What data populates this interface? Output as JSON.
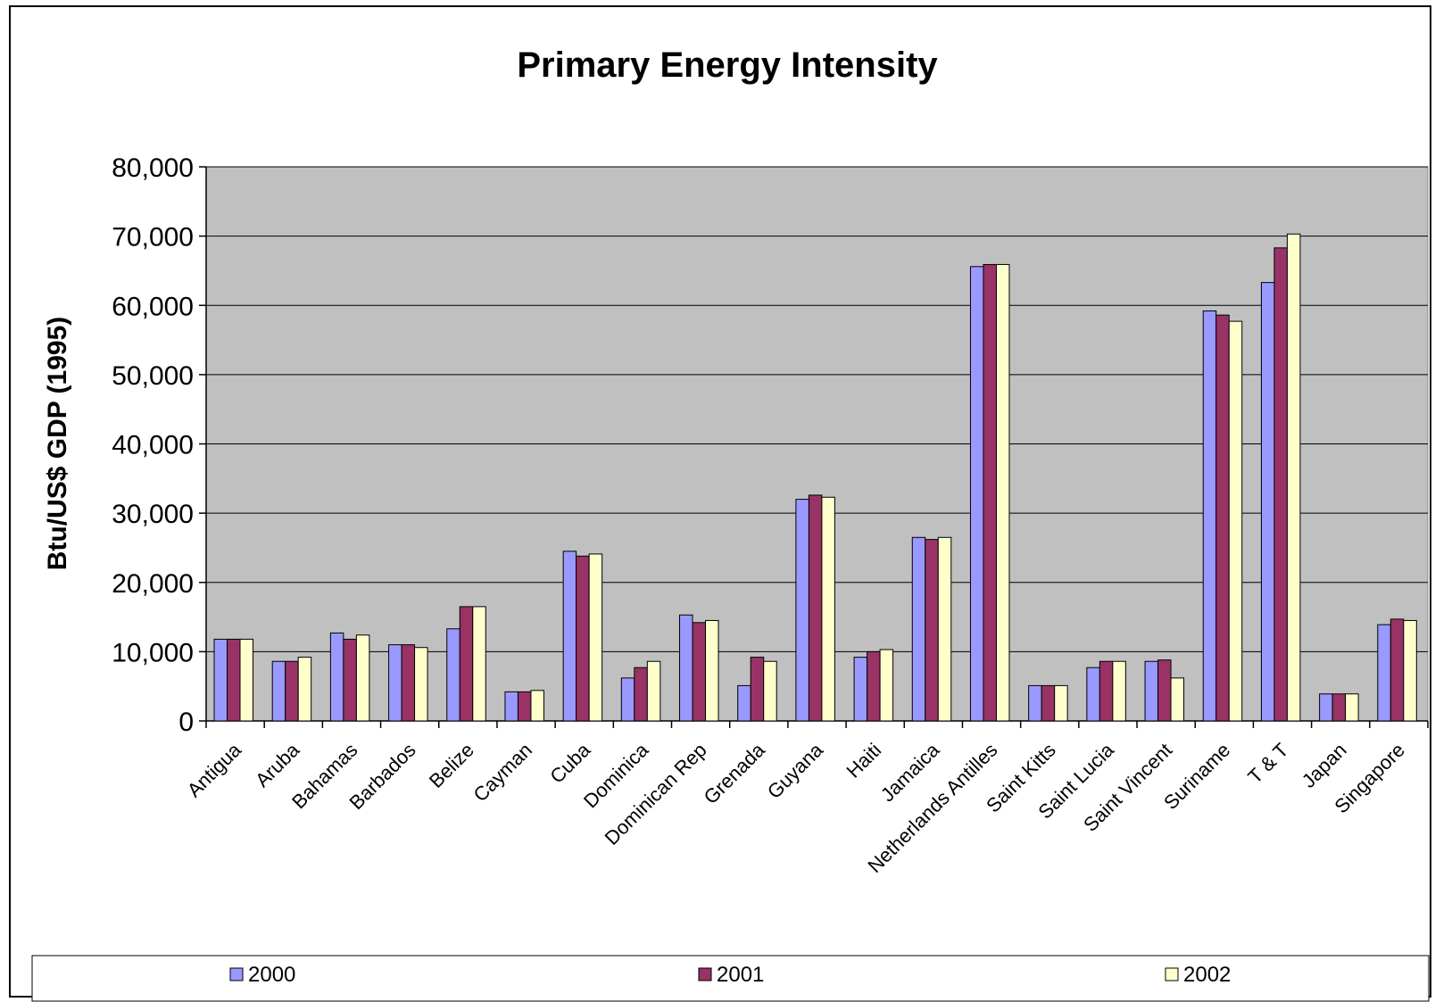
{
  "chart_data": {
    "type": "bar",
    "title": "Primary Energy Intensity",
    "ylabel": "Btu/US$ GDP (1995)",
    "xlabel": "",
    "ylim": [
      0,
      80000
    ],
    "yticks": [
      "0",
      "10,000",
      "20,000",
      "30,000",
      "40,000",
      "50,000",
      "60,000",
      "70,000",
      "80,000"
    ],
    "grid": true,
    "legend_position": "bottom",
    "plot_background": "#C0C0C0",
    "categories": [
      "Antigua",
      "Aruba",
      "Bahamas",
      "Barbados",
      "Belize",
      "Cayman",
      "Cuba",
      "Dominica",
      "Dominican Rep",
      "Grenada",
      "Guyana",
      "Haiti",
      "Jamaica",
      "Netherlands Antilles",
      "Saint Kitts",
      "Saint Lucia",
      "Saint Vincent",
      "Suriname",
      "T & T",
      "Japan",
      "Singapore"
    ],
    "series": [
      {
        "name": "2000",
        "color": "#9999FF",
        "values": [
          11800,
          8600,
          12700,
          11000,
          13300,
          4200,
          24500,
          6200,
          15300,
          5100,
          32000,
          9200,
          26500,
          65600,
          5100,
          7700,
          8600,
          59200,
          63300,
          3900,
          13900
        ]
      },
      {
        "name": "2001",
        "color": "#993366",
        "values": [
          11800,
          8600,
          11800,
          11000,
          16500,
          4200,
          23800,
          7700,
          14200,
          9200,
          32600,
          10000,
          26200,
          65900,
          5100,
          8600,
          8800,
          58600,
          68300,
          3900,
          14700
        ]
      },
      {
        "name": "2002",
        "color": "#FFFFCC",
        "values": [
          11800,
          9200,
          12400,
          10600,
          16500,
          4400,
          24100,
          8600,
          14500,
          8600,
          32300,
          10300,
          26500,
          65900,
          5100,
          8600,
          6200,
          57700,
          70300,
          3900,
          14500
        ]
      }
    ]
  }
}
